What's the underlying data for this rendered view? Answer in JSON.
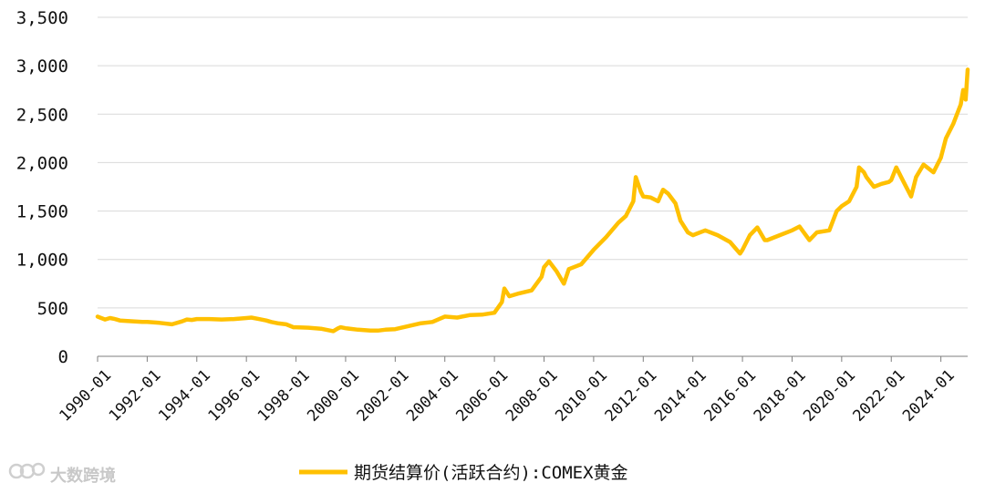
{
  "watermark": {
    "text": "大数跨境",
    "icon": "logo-icon"
  },
  "chart_data": {
    "type": "line",
    "title": "",
    "xlabel": "",
    "ylabel": "",
    "ylim": [
      0,
      3500
    ],
    "yticks": [
      0,
      500,
      1000,
      1500,
      2000,
      2500,
      3000,
      3500
    ],
    "ytick_labels": [
      "0",
      "500",
      "1,000",
      "1,500",
      "2,000",
      "2,500",
      "3,000",
      "3,500"
    ],
    "xlim": [
      1990.0,
      2025.08
    ],
    "xtick_labels": [
      "1990-01",
      "1992-01",
      "1994-01",
      "1996-01",
      "1998-01",
      "2000-01",
      "2002-01",
      "2004-01",
      "2006-01",
      "2008-01",
      "2010-01",
      "2012-01",
      "2014-01",
      "2016-01",
      "2018-01",
      "2020-01",
      "2022-01",
      "2024-01"
    ],
    "grid": "horizontal",
    "legend_position": "bottom",
    "series": [
      {
        "name": "期货结算价(活跃合约):COMEX黄金",
        "color": "#FFC000",
        "x": [
          1990.0,
          1990.1,
          1990.3,
          1990.5,
          1990.7,
          1990.9,
          1991.2,
          1991.5,
          1991.8,
          1992.0,
          1992.5,
          1993.0,
          1993.4,
          1993.6,
          1993.8,
          1994.0,
          1994.5,
          1995.0,
          1995.5,
          1996.0,
          1996.2,
          1996.5,
          1996.8,
          1997.0,
          1997.3,
          1997.6,
          1997.9,
          1998.0,
          1998.5,
          1999.0,
          1999.5,
          1999.7,
          1999.8,
          2000.0,
          2000.5,
          2001.0,
          2001.3,
          2001.6,
          2002.0,
          2002.5,
          2003.0,
          2003.5,
          2004.0,
          2004.5,
          2005.0,
          2005.5,
          2006.0,
          2006.3,
          2006.4,
          2006.6,
          2007.0,
          2007.5,
          2007.9,
          2008.0,
          2008.2,
          2008.5,
          2008.8,
          2009.0,
          2009.5,
          2010.0,
          2010.5,
          2011.0,
          2011.3,
          2011.6,
          2011.7,
          2011.9,
          2012.0,
          2012.3,
          2012.6,
          2012.8,
          2013.0,
          2013.3,
          2013.5,
          2013.8,
          2014.0,
          2014.5,
          2015.0,
          2015.5,
          2015.9,
          2016.0,
          2016.3,
          2016.6,
          2016.9,
          2017.0,
          2017.5,
          2018.0,
          2018.3,
          2018.7,
          2019.0,
          2019.5,
          2019.8,
          2020.0,
          2020.3,
          2020.6,
          2020.7,
          2020.9,
          2021.0,
          2021.3,
          2021.6,
          2021.9,
          2022.0,
          2022.2,
          2022.5,
          2022.8,
          2023.0,
          2023.3,
          2023.7,
          2023.9,
          2024.0,
          2024.2,
          2024.5,
          2024.8,
          2024.9,
          2025.0,
          2025.08
        ],
        "y": [
          410,
          400,
          380,
          395,
          385,
          370,
          365,
          360,
          355,
          355,
          345,
          330,
          360,
          380,
          375,
          385,
          385,
          380,
          385,
          395,
          400,
          385,
          370,
          355,
          340,
          330,
          300,
          300,
          295,
          285,
          260,
          290,
          300,
          290,
          275,
          265,
          265,
          275,
          280,
          310,
          340,
          355,
          410,
          400,
          425,
          430,
          450,
          560,
          700,
          620,
          650,
          680,
          820,
          920,
          980,
          880,
          750,
          900,
          950,
          1100,
          1230,
          1380,
          1450,
          1600,
          1850,
          1700,
          1650,
          1640,
          1600,
          1720,
          1680,
          1580,
          1400,
          1280,
          1250,
          1300,
          1250,
          1180,
          1060,
          1100,
          1250,
          1330,
          1200,
          1200,
          1250,
          1300,
          1340,
          1200,
          1280,
          1300,
          1500,
          1550,
          1600,
          1750,
          1950,
          1900,
          1850,
          1750,
          1780,
          1800,
          1820,
          1950,
          1800,
          1650,
          1850,
          1980,
          1900,
          2000,
          2050,
          2250,
          2400,
          2600,
          2750,
          2650,
          2960
        ]
      }
    ]
  }
}
